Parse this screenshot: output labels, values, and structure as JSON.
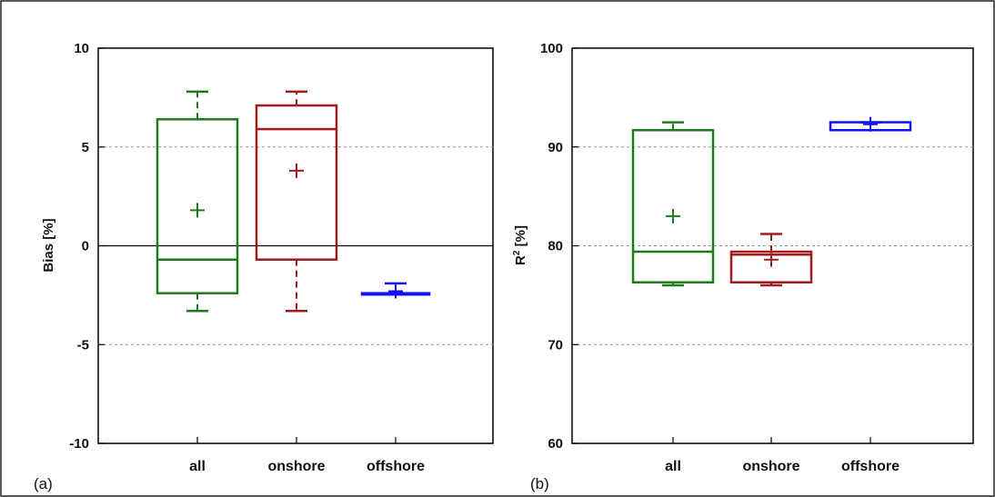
{
  "chart_data": [
    {
      "type": "box",
      "panel_label": "(a)",
      "ylabel": "Bias [%]",
      "ylim": [
        -10,
        10
      ],
      "yticks": [
        {
          "value": -10,
          "label": "-10"
        },
        {
          "value": -5,
          "label": "-5"
        },
        {
          "value": 0,
          "label": "0"
        },
        {
          "value": 5,
          "label": "5"
        },
        {
          "value": 10,
          "label": "10"
        }
      ],
      "grid": "dashed horizontal at ticks",
      "zero_line": true,
      "categories": [
        "all",
        "onshore",
        "offshore"
      ],
      "boxes": [
        {
          "category": "all",
          "min": -3.3,
          "q1": -2.4,
          "median": -0.7,
          "q3": 6.4,
          "max": 7.8,
          "mean": 1.8,
          "color": "#1e7a1e"
        },
        {
          "category": "onshore",
          "min": -3.3,
          "q1": -0.7,
          "median": 5.9,
          "q3": 7.1,
          "max": 7.8,
          "mean": 3.8,
          "color": "#a01c1c"
        },
        {
          "category": "offshore",
          "min": -2.4,
          "q1": -2.4,
          "median": -2.4,
          "q3": -2.4,
          "max": -1.9,
          "mean": -2.3,
          "color": "#1010ff"
        }
      ]
    },
    {
      "type": "box",
      "panel_label": "(b)",
      "ylabel_main": "R",
      "ylabel_sup": "2",
      "ylabel_rest": " [%]",
      "ylim": [
        60,
        100
      ],
      "yticks": [
        {
          "value": 60,
          "label": "60"
        },
        {
          "value": 70,
          "label": "70"
        },
        {
          "value": 80,
          "label": "80"
        },
        {
          "value": 90,
          "label": "90"
        },
        {
          "value": 100,
          "label": "100"
        }
      ],
      "grid": "dashed horizontal at ticks",
      "zero_line": false,
      "categories": [
        "all",
        "onshore",
        "offshore"
      ],
      "boxes": [
        {
          "category": "all",
          "min": 76.0,
          "q1": 76.3,
          "median": 79.4,
          "q3": 91.7,
          "max": 92.5,
          "mean": 83.0,
          "color": "#1e7a1e"
        },
        {
          "category": "onshore",
          "min": 76.0,
          "q1": 76.3,
          "median": 79.1,
          "q3": 79.4,
          "max": 81.2,
          "mean": 78.6,
          "color": "#a01c1c"
        },
        {
          "category": "offshore",
          "min": 91.7,
          "q1": 91.7,
          "median": 91.7,
          "q3": 92.5,
          "max": 92.5,
          "mean": 92.3,
          "color": "#1010ff"
        }
      ]
    }
  ]
}
